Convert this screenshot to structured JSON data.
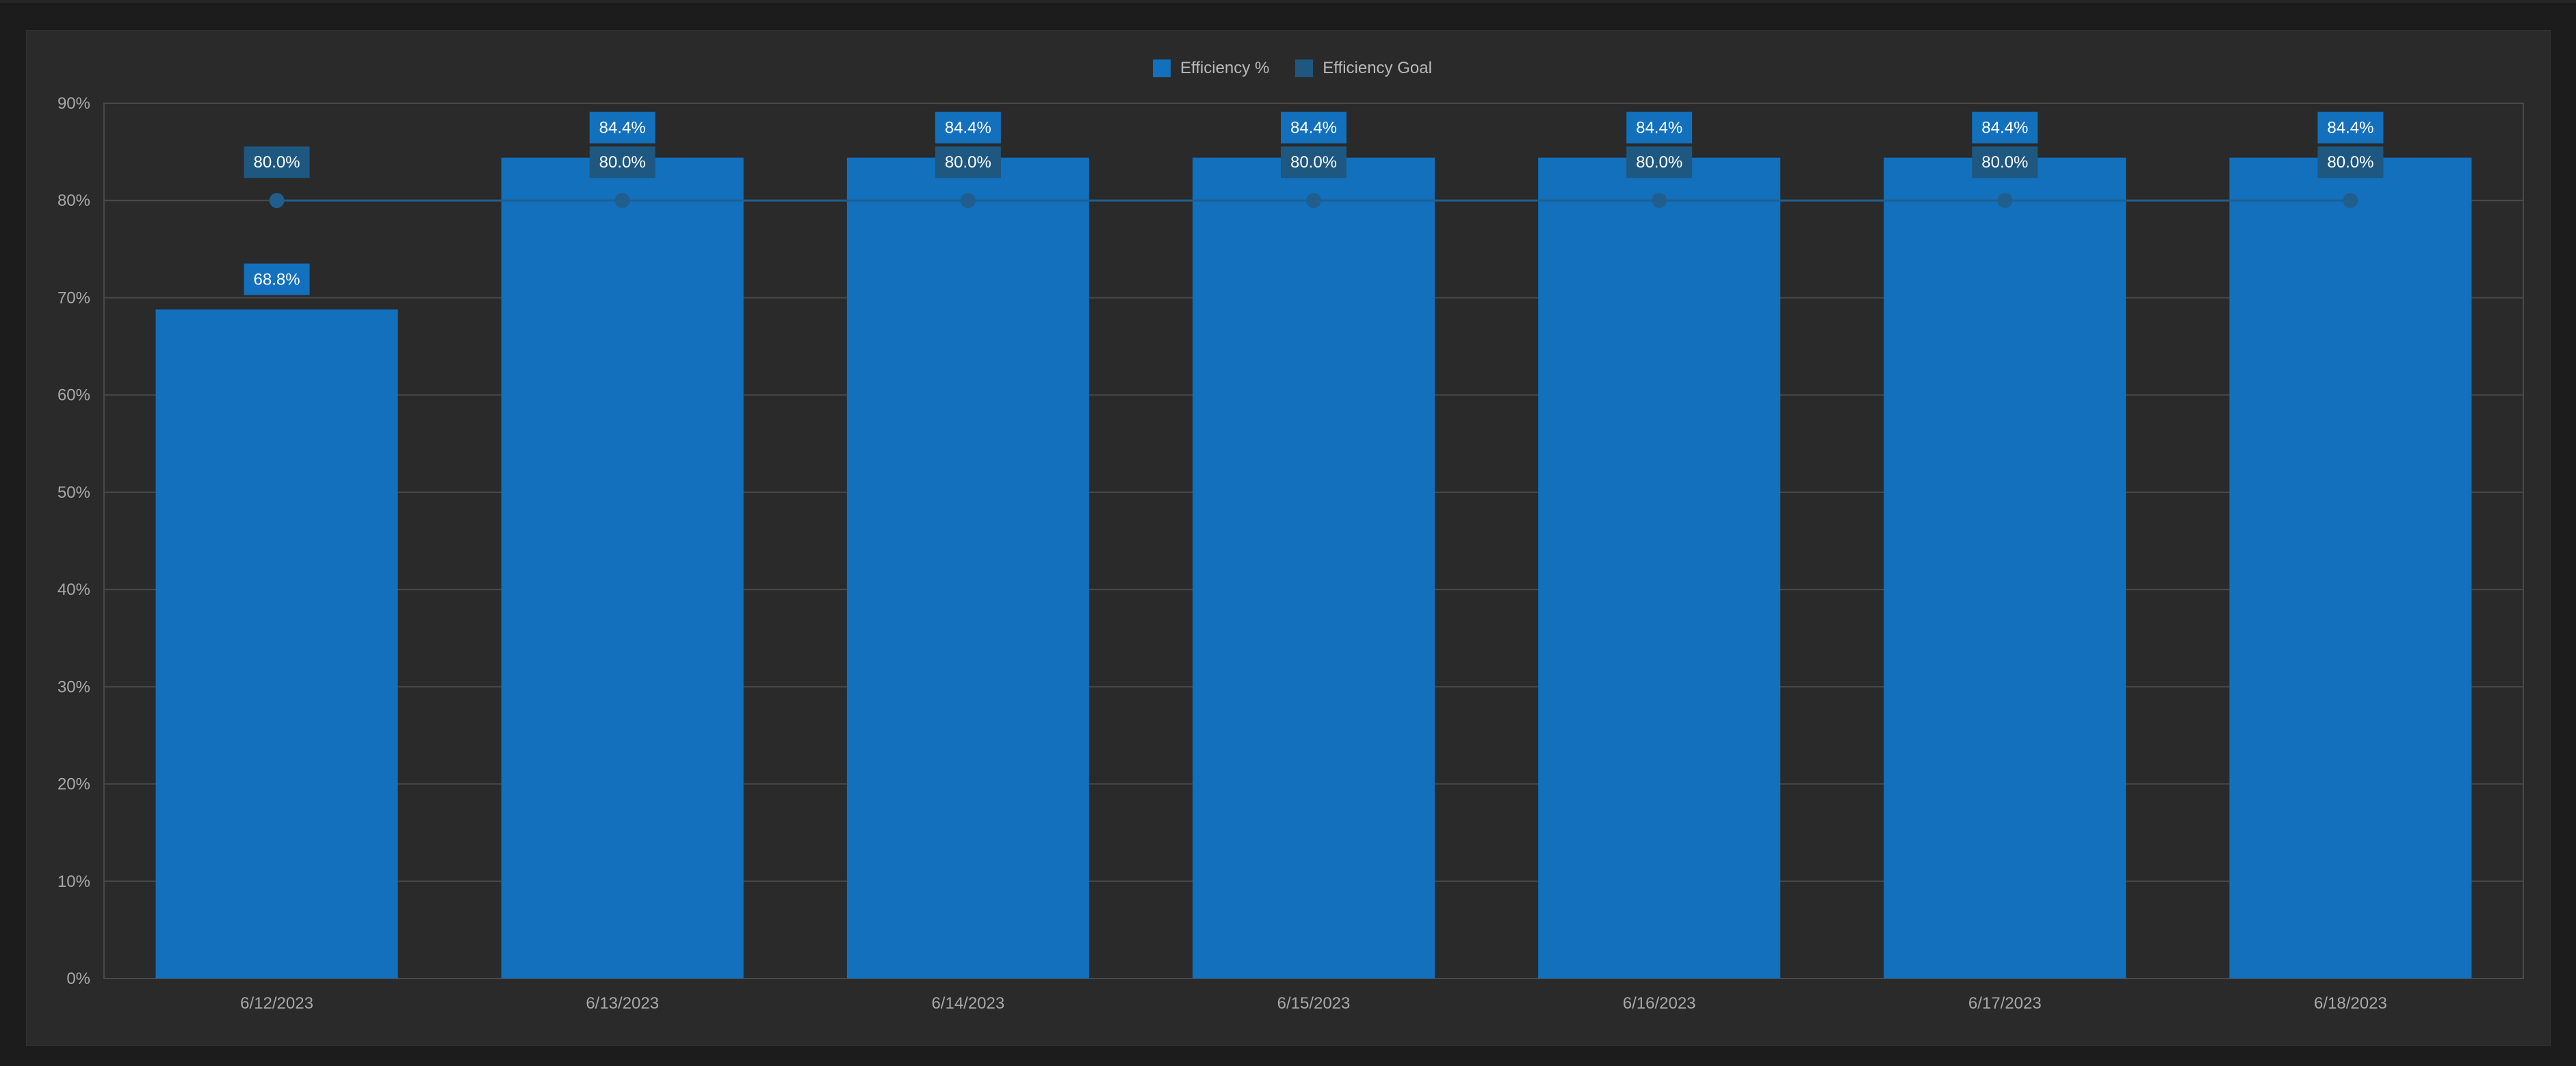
{
  "colors": {
    "efficiency": "#1270bd",
    "goal": "#1e5780",
    "goal_line": "#205f8d",
    "grid": "#4a4a4a",
    "axis_text": "#a8a8a8"
  },
  "legend": {
    "efficiency_label": "Efficiency %",
    "goal_label": "Efficiency Goal"
  },
  "chart_data": {
    "type": "bar",
    "categories": [
      "6/12/2023",
      "6/13/2023",
      "6/14/2023",
      "6/15/2023",
      "6/16/2023",
      "6/17/2023",
      "6/18/2023"
    ],
    "series": [
      {
        "name": "Efficiency %",
        "kind": "bar",
        "values": [
          68.8,
          84.4,
          84.4,
          84.4,
          84.4,
          84.4,
          84.4
        ],
        "labels": [
          "68.8%",
          "84.4%",
          "84.4%",
          "84.4%",
          "84.4%",
          "84.4%",
          "84.4%"
        ]
      },
      {
        "name": "Efficiency Goal",
        "kind": "line",
        "values": [
          80.0,
          80.0,
          80.0,
          80.0,
          80.0,
          80.0,
          80.0
        ],
        "labels": [
          "80.0%",
          "80.0%",
          "80.0%",
          "80.0%",
          "80.0%",
          "80.0%",
          "80.0%"
        ]
      }
    ],
    "y_ticks": [
      "0%",
      "10%",
      "20%",
      "30%",
      "40%",
      "50%",
      "60%",
      "70%",
      "80%",
      "90%"
    ],
    "ylim": [
      0,
      90
    ],
    "grid": true,
    "legend_position": "top-center",
    "title": "",
    "xlabel": "",
    "ylabel": ""
  }
}
